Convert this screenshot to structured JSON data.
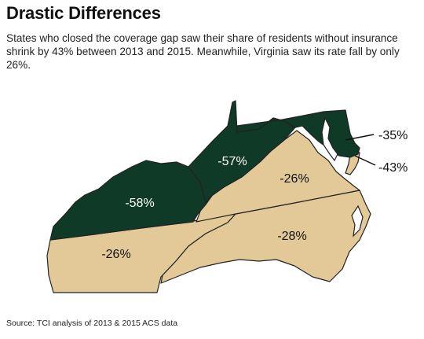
{
  "title": "Drastic Differences",
  "subtitle": "States who closed the coverage gap saw their share of residents without insurance shrink by 43% between 2013 and 2015. Meanwhile, Virginia saw its rate fall by only 26%.",
  "source": "Source: TCI analysis of 2013 & 2015 ACS data",
  "colors": {
    "closed_gap": "#0f3a27",
    "not_closed": "#e3c997",
    "border": "#222222",
    "label_dark": "#ffffff",
    "label_light": "#111111"
  },
  "regions": [
    {
      "id": "kentucky",
      "label": "-58%",
      "group": "closed_gap"
    },
    {
      "id": "west-virginia",
      "label": "-57%",
      "group": "closed_gap"
    },
    {
      "id": "maryland",
      "label": "-35%",
      "group": "closed_gap"
    },
    {
      "id": "delaware",
      "label": "-43%",
      "group": "not_closed"
    },
    {
      "id": "virginia",
      "label": "-26%",
      "group": "not_closed"
    },
    {
      "id": "tennessee",
      "label": "-26%",
      "group": "not_closed"
    },
    {
      "id": "north-carolina",
      "label": "-28%",
      "group": "not_closed"
    }
  ]
}
